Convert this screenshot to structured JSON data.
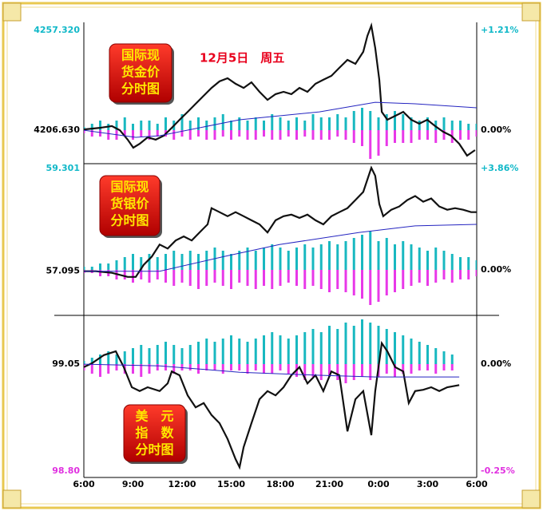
{
  "chart_data": [
    {
      "type": "line",
      "label_lines": [
        "国际现",
        "货金价",
        "分时图"
      ],
      "annotation": "12月5日　周五",
      "xlim": [
        0,
        24
      ],
      "ylim": [
        4189.6,
        4260.56
      ],
      "yticks": [
        {
          "value": 4206.63,
          "label": "4206.630"
        },
        {
          "value": 4257.32,
          "label": "4257.320"
        }
      ],
      "y2lim": [
        -0.4066,
        1.2874
      ],
      "y2ticks": [
        {
          "value": 0,
          "label": "0.00%"
        },
        {
          "value": 1.21,
          "label": "+1.21%"
        }
      ],
      "ytick_colors": [
        "#000000",
        "#10b8c8"
      ],
      "series": [
        {
          "color": "#111111",
          "x": [
            0,
            0.98,
            1.71,
            2.2,
            2.68,
            3.02,
            3.41,
            3.9,
            4.39,
            4.88,
            5.37,
            5.85,
            6.34,
            6.83,
            7.32,
            7.8,
            8.29,
            8.78,
            9.27,
            9.76,
            10.24,
            10.73,
            11.22,
            11.71,
            12.2,
            12.68,
            13.17,
            13.66,
            14.15,
            14.63,
            15.12,
            15.61,
            16.1,
            16.59,
            17.07,
            17.32,
            17.56,
            17.8,
            18.05,
            18.2,
            18.54,
            19.02,
            19.51,
            20,
            20.49,
            20.98,
            21.46,
            21.95,
            22.44,
            22.93,
            23.41,
            23.9
          ],
          "values": [
            4207.0,
            4207.8,
            4208.7,
            4206.6,
            4201.8,
            4197.7,
            4199.7,
            4203.0,
            4201.8,
            4203.8,
            4207.8,
            4211.9,
            4215.9,
            4220.0,
            4224.1,
            4228.1,
            4231.4,
            4233.0,
            4230.2,
            4228.1,
            4230.9,
            4226.1,
            4222.0,
            4224.9,
            4226.1,
            4224.9,
            4228.1,
            4226.1,
            4230.2,
            4232.2,
            4234.2,
            4238.3,
            4242.3,
            4240.3,
            4246.4,
            4254.5,
            4259.7,
            4248.4,
            4232.2,
            4215.9,
            4211.9,
            4213.9,
            4215.9,
            4211.9,
            4209.9,
            4211.9,
            4208.7,
            4205.8,
            4203.8,
            4199.7,
            4193.7,
            4196.5
          ]
        },
        {
          "color": "#2424c0",
          "x": [
            0,
            3.17,
            4.63,
            9.51,
            14.39,
            17.8,
            20.24,
            24
          ],
          "values": [
            4206.6,
            4203.0,
            4203.8,
            4211.9,
            4215.9,
            4220.8,
            4220.0,
            4218.0
          ]
        }
      ],
      "bars": {
        "up_color": "#18b8c0",
        "down_color": "#e838e8",
        "x": [
          0,
          0.5,
          1,
          1.5,
          2,
          2.5,
          3,
          3.5,
          4,
          4.5,
          5,
          5.5,
          6,
          6.5,
          7,
          7.5,
          8,
          8.5,
          9,
          9.5,
          10,
          10.5,
          11,
          11.5,
          12,
          12.5,
          13,
          13.5,
          14,
          14.5,
          15,
          15.5,
          16,
          16.5,
          17,
          17.5,
          18,
          18.5,
          19,
          19.5,
          20,
          20.5,
          21,
          21.5,
          22,
          22.5,
          23,
          23.5,
          24
        ],
        "up": [
          1,
          2,
          3,
          2,
          3,
          4,
          2,
          3,
          3,
          2,
          4,
          3,
          5,
          3,
          4,
          3,
          4,
          5,
          3,
          4,
          3,
          4,
          3,
          5,
          4,
          3,
          4,
          3,
          5,
          4,
          4,
          5,
          4,
          6,
          7,
          6,
          4,
          5,
          6,
          5,
          4,
          3,
          4,
          3,
          4,
          3,
          3,
          2,
          2
        ],
        "down": [
          1,
          2,
          2,
          3,
          3,
          2,
          3,
          2,
          3,
          2,
          2,
          3,
          2,
          3,
          2,
          3,
          3,
          2,
          3,
          2,
          3,
          3,
          2,
          3,
          3,
          2,
          3,
          2,
          3,
          3,
          3,
          2,
          3,
          4,
          5,
          9,
          8,
          5,
          4,
          4,
          4,
          3,
          3,
          4,
          3,
          4,
          3,
          3,
          2
        ]
      }
    },
    {
      "type": "line",
      "label_lines": [
        "国际现",
        "货银价",
        "分时图"
      ],
      "xlim": [
        0,
        24
      ],
      "ylim": [
        56.146,
        59.405
      ],
      "yticks": [
        {
          "value": 57.095,
          "label": "57.095"
        },
        59.301
      ],
      "y2lim": [
        -1.732,
        4.042
      ],
      "y2ticks": [
        {
          "value": 0,
          "label": "0.00%"
        },
        {
          "value": 3.86,
          "label": "+3.86%"
        }
      ],
      "ytick_colors": [
        "#000000",
        "#10b8c8"
      ],
      "series": [
        {
          "color": "#111111",
          "x": [
            0,
            0.73,
            1.71,
            2.68,
            3.17,
            3.66,
            4.15,
            4.63,
            5.12,
            5.61,
            6.1,
            6.59,
            7.07,
            7.56,
            7.8,
            8.29,
            8.78,
            9.27,
            9.76,
            10.24,
            10.73,
            11.22,
            11.71,
            12.2,
            12.68,
            13.17,
            13.66,
            14.15,
            14.63,
            15.12,
            15.61,
            16.1,
            16.59,
            17.07,
            17.56,
            17.8,
            18.05,
            18.29,
            18.78,
            19.27,
            19.76,
            20.24,
            20.73,
            21.22,
            21.71,
            22.2,
            22.68,
            23.17,
            23.66,
            24
          ],
          "values": [
            57.095,
            57.095,
            57.06,
            56.973,
            56.973,
            57.234,
            57.408,
            57.668,
            57.581,
            57.755,
            57.842,
            57.755,
            57.929,
            58.102,
            58.45,
            58.363,
            58.276,
            58.363,
            58.276,
            58.189,
            58.102,
            57.929,
            58.189,
            58.276,
            58.311,
            58.241,
            58.311,
            58.189,
            58.102,
            58.276,
            58.363,
            58.45,
            58.624,
            58.797,
            59.318,
            59.144,
            58.537,
            58.276,
            58.415,
            58.485,
            58.624,
            58.71,
            58.589,
            58.658,
            58.485,
            58.415,
            58.45,
            58.415,
            58.363,
            58.363
          ]
        },
        {
          "color": "#2424c0",
          "x": [
            0,
            4.63,
            8.54,
            11.95,
            16.83,
            20.24,
            24
          ],
          "values": [
            57.095,
            57.095,
            57.408,
            57.668,
            57.929,
            58.068,
            58.102
          ]
        }
      ],
      "bars": {
        "up_color": "#18b8c0",
        "down_color": "#e838e8",
        "x": [
          0,
          0.5,
          1,
          1.5,
          2,
          2.5,
          3,
          3.5,
          4,
          4.5,
          5,
          5.5,
          6,
          6.5,
          7,
          7.5,
          8,
          8.5,
          9,
          9.5,
          10,
          10.5,
          11,
          11.5,
          12,
          12.5,
          13,
          13.5,
          14,
          14.5,
          15,
          15.5,
          16,
          16.5,
          17,
          17.5,
          18,
          18.5,
          19,
          19.5,
          20,
          20.5,
          21,
          21.5,
          22,
          22.5,
          23,
          23.5,
          24
        ],
        "up": [
          1,
          1,
          2,
          2,
          3,
          4,
          5,
          4,
          5,
          4,
          5,
          6,
          5,
          6,
          5,
          6,
          7,
          6,
          5,
          6,
          7,
          6,
          7,
          8,
          7,
          6,
          7,
          8,
          7,
          8,
          9,
          8,
          9,
          10,
          11,
          12,
          9,
          10,
          8,
          9,
          8,
          7,
          6,
          7,
          6,
          5,
          4,
          4,
          3
        ],
        "down": [
          1,
          1,
          2,
          2,
          3,
          3,
          4,
          3,
          4,
          3,
          4,
          5,
          4,
          5,
          6,
          5,
          4,
          5,
          6,
          4,
          5,
          6,
          5,
          6,
          5,
          4,
          5,
          6,
          5,
          6,
          7,
          6,
          7,
          8,
          9,
          11,
          10,
          8,
          7,
          6,
          5,
          4,
          5,
          4,
          3,
          4,
          3,
          3,
          2
        ]
      }
    },
    {
      "type": "line",
      "label_lines": [
        "美　元",
        "指　数",
        "分时图"
      ],
      "xlim": [
        0,
        24
      ],
      "xticks": [
        {
          "value": 0,
          "label": "6:00"
        },
        {
          "value": 3,
          "label": "9:00"
        },
        {
          "value": 6,
          "label": "12:00"
        },
        {
          "value": 9,
          "label": "15:00"
        },
        {
          "value": 12,
          "label": "18:00"
        },
        {
          "value": 15,
          "label": "21:00"
        },
        {
          "value": 18,
          "label": "0:00"
        },
        {
          "value": 21,
          "label": "3:00"
        },
        {
          "value": 24,
          "label": "6:00"
        }
      ],
      "ylim": [
        98.785,
        99.164
      ],
      "yticks": [
        {
          "value": 98.8,
          "label": "98.80"
        },
        99.05
      ],
      "y2lim": [
        -0.265,
        0.1138
      ],
      "y2ticks": [
        {
          "value": -0.25,
          "label": "-0.25%"
        },
        {
          "value": 0,
          "label": "0.00%"
        }
      ],
      "ytick_colors": [
        "#e030e0",
        "#000000"
      ],
      "series": [
        {
          "color": "#111111",
          "x": [
            0,
            0.49,
            1.22,
            1.95,
            2.44,
            2.93,
            3.41,
            3.9,
            4.63,
            5.12,
            5.37,
            5.85,
            6.34,
            6.83,
            7.32,
            7.8,
            8.29,
            8.78,
            9.27,
            9.51,
            9.76,
            10.24,
            10.73,
            11.22,
            11.71,
            12.2,
            12.68,
            13.17,
            13.66,
            14.15,
            14.63,
            15.12,
            15.61,
            16.1,
            16.59,
            17.07,
            17.56,
            17.8,
            18.2,
            18.54,
            19.02,
            19.51,
            19.85,
            20.24,
            20.73,
            21.22,
            21.71,
            22.2,
            22.93
          ],
          "values": [
            99.043,
            99.052,
            99.071,
            99.08,
            99.043,
            98.996,
            98.987,
            98.996,
            98.987,
            99.005,
            99.033,
            99.024,
            98.977,
            98.949,
            98.959,
            98.931,
            98.912,
            98.875,
            98.828,
            98.809,
            98.856,
            98.912,
            98.968,
            98.987,
            98.977,
            98.996,
            99.024,
            99.043,
            99.005,
            99.024,
            98.987,
            99.033,
            99.024,
            98.893,
            98.968,
            98.987,
            98.884,
            98.987,
            99.099,
            99.08,
            99.043,
            99.033,
            98.959,
            98.987,
            98.99,
            98.996,
            98.987,
            98.996,
            99.001
          ]
        },
        {
          "color": "#2424c0",
          "x": [
            0,
            4.63,
            9.51,
            14.39,
            17.8,
            22.93
          ],
          "values": [
            99.05,
            99.046,
            99.031,
            99.024,
            99.02,
            99.02
          ]
        }
      ],
      "bars": {
        "up_color": "#18b8c0",
        "down_color": "#e838e8",
        "x": [
          0,
          0.5,
          1,
          1.5,
          2,
          2.5,
          3,
          3.5,
          4,
          4.5,
          5,
          5.5,
          6,
          6.5,
          7,
          7.5,
          8,
          8.5,
          9,
          9.5,
          10,
          10.5,
          11,
          11.5,
          12,
          12.5,
          13,
          13.5,
          14,
          14.5,
          15,
          15.5,
          16,
          16.5,
          17,
          17.5,
          18,
          18.5,
          19,
          19.5,
          20,
          20.5,
          21,
          21.5,
          22,
          22.5
        ],
        "up": [
          1,
          2,
          3,
          4,
          3,
          4,
          5,
          6,
          5,
          6,
          7,
          6,
          5,
          6,
          7,
          8,
          7,
          8,
          9,
          8,
          7,
          8,
          9,
          10,
          9,
          8,
          9,
          10,
          11,
          10,
          12,
          11,
          13,
          12,
          14,
          13,
          12,
          11,
          10,
          9,
          8,
          7,
          6,
          5,
          4,
          3
        ],
        "down": [
          2,
          3,
          4,
          3,
          2,
          3,
          3,
          4,
          3,
          2,
          2,
          3,
          2,
          2,
          3,
          2,
          2,
          3,
          2,
          2,
          3,
          2,
          3,
          3,
          2,
          3,
          4,
          5,
          4,
          5,
          4,
          5,
          6,
          5,
          4,
          5,
          4,
          3,
          4,
          3,
          3,
          2,
          2,
          3,
          2,
          2
        ]
      }
    }
  ]
}
